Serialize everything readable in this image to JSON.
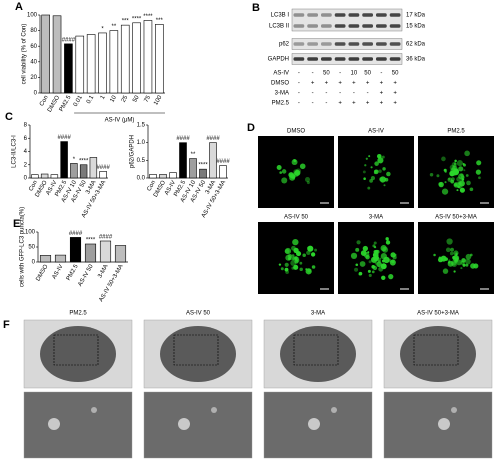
{
  "chart_data": [
    {
      "type": "bar",
      "panel": "A",
      "ylabel": "cell viability (% of Con)",
      "xlabel": "AS-IV (μM)",
      "categories": [
        "Con",
        "DMSO",
        "PM2.5",
        "0.01",
        "0.1",
        "1",
        "10",
        "25",
        "50",
        "75",
        "100"
      ],
      "values": [
        100,
        99,
        63,
        73,
        75,
        77,
        80,
        87,
        90,
        93,
        88
      ],
      "colors": [
        "#bdbdbd",
        "#bdbdbd",
        "#000000",
        "#ffffff",
        "#ffffff",
        "#ffffff",
        "#ffffff",
        "#ffffff",
        "#ffffff",
        "#ffffff",
        "#ffffff"
      ],
      "significance": [
        null,
        null,
        "####",
        null,
        null,
        "*",
        "**",
        "***",
        "****",
        "****",
        "***"
      ],
      "ylim": [
        0,
        100
      ],
      "yticks": [
        0,
        20,
        40,
        60,
        80,
        100
      ]
    },
    {
      "type": "bar",
      "panel": "C",
      "ylabel": "LC3-II/LC3-I",
      "categories": [
        "Con",
        "DMSO",
        "AS-IV",
        "PM2.5",
        "AS-IV 10",
        "AS-IV 50",
        "3-MA",
        "AS-IV 50+3-MA"
      ],
      "values": [
        0.5,
        0.6,
        0.5,
        5.5,
        2.2,
        2.0,
        3.1,
        1.0
      ],
      "colors": [
        "#ffffff",
        "#d9d9d9",
        "#ffffff",
        "#000000",
        "#9e9e9e",
        "#7a7a7a",
        "#d9d9d9",
        "#ffffff"
      ],
      "significance": [
        null,
        null,
        null,
        "####",
        "*",
        "****",
        null,
        "####"
      ],
      "ylim": [
        0,
        8
      ],
      "yticks": [
        0,
        2,
        4,
        6,
        8
      ]
    },
    {
      "type": "bar",
      "ylabel": "p62/GAPDH",
      "categories": [
        "Con",
        "DMSO",
        "AS-IV",
        "PM2.5",
        "AS-IV 10",
        "AS-IV 50",
        "3-MA",
        "AS-IV 50+3-MA"
      ],
      "values": [
        0.1,
        0.1,
        0.15,
        1.0,
        0.55,
        0.25,
        1.0,
        0.35
      ],
      "colors": [
        "#ffffff",
        "#d9d9d9",
        "#ffffff",
        "#000000",
        "#9e9e9e",
        "#7a7a7a",
        "#d9d9d9",
        "#ffffff"
      ],
      "significance": [
        null,
        null,
        null,
        "####",
        "**",
        "****",
        "####",
        "####"
      ],
      "ylim": [
        0,
        1.5
      ],
      "yticks": [
        {
          "value": 0,
          "label": "0.0"
        },
        {
          "value": 0.5,
          "label": "0.5"
        },
        {
          "value": 1,
          "label": "1.0"
        },
        {
          "value": 1.5,
          "label": "1.5"
        }
      ]
    },
    {
      "type": "bar",
      "panel": "E",
      "ylabel": "cells with GFP-LC3 puncta(%)",
      "categories": [
        "DMSO",
        "AS-IV",
        "PM2.5",
        "AS-IV 50",
        "3-MA",
        "AS-IV 50+3-MA"
      ],
      "values": [
        22,
        23,
        82,
        60,
        70,
        55
      ],
      "colors": [
        "#bdbdbd",
        "#bdbdbd",
        "#000000",
        "#9e9e9e",
        "#d9d9d9",
        "#bdbdbd"
      ],
      "significance": [
        null,
        null,
        "####",
        "****",
        "####",
        null
      ],
      "ylim": [
        0,
        100
      ],
      "yticks": [
        0,
        50,
        100
      ]
    }
  ],
  "blot": {
    "panel": "B",
    "bands": [
      {
        "label": "LC3B I",
        "size": "17 kDa"
      },
      {
        "label": "LC3B II",
        "size": "15 kDa"
      },
      {
        "label": "p62",
        "size": "62 kDa"
      },
      {
        "label": "GAPDH",
        "size": "36 kDa"
      }
    ],
    "conditions": [
      {
        "label": "AS-IV",
        "lanes": [
          "-",
          "-",
          "50",
          "-",
          "10",
          "50",
          "-",
          "50"
        ]
      },
      {
        "label": "DMSO",
        "lanes": [
          "-",
          "+",
          "+",
          "+",
          "+",
          "+",
          "+",
          "+"
        ]
      },
      {
        "label": "3-MA",
        "lanes": [
          "-",
          "-",
          "-",
          "-",
          "-",
          "-",
          "+",
          "+"
        ]
      },
      {
        "label": "PM2.5",
        "lanes": [
          "-",
          "-",
          "-",
          "+",
          "+",
          "+",
          "+",
          "+"
        ]
      }
    ]
  },
  "fluorescence": {
    "panel": "D",
    "images": [
      "DMSO",
      "AS-IV",
      "PM2.5",
      "AS-IV 50",
      "3-MA",
      "AS-IV 50+3-MA"
    ]
  },
  "electron_microscopy": {
    "panel": "F",
    "images": [
      "PM2.5",
      "AS-IV 50",
      "3-MA",
      "AS-IV 50+3-MA"
    ]
  }
}
